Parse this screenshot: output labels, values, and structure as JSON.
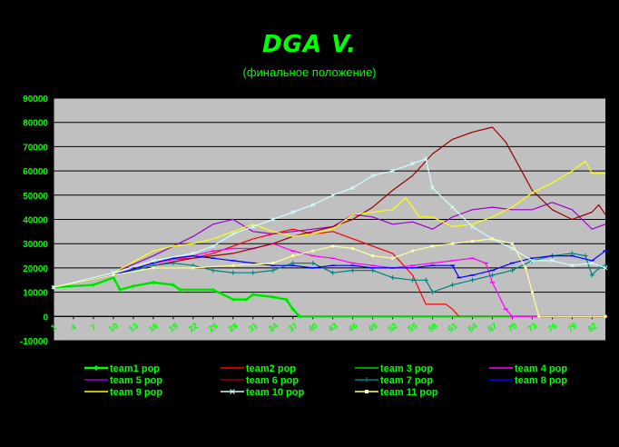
{
  "chart_data": {
    "type": "line",
    "title": "DGA V.",
    "subtitle": "(финальное положение)",
    "xlabel": "",
    "ylabel": "",
    "ylim": [
      -10000,
      90000
    ],
    "y_ticks": [
      "90000",
      "80000",
      "70000",
      "60000",
      "50000",
      "40000",
      "30000",
      "20000",
      "10000",
      "0",
      "-10000"
    ],
    "x_tick_labels": [
      "1",
      "4",
      "7",
      "10",
      "13",
      "16",
      "19",
      "22",
      "25",
      "28",
      "31",
      "34",
      "37",
      "40",
      "43",
      "46",
      "49",
      "52",
      "55",
      "58",
      "61",
      "64",
      "67",
      "70",
      "73",
      "76",
      "79",
      "82"
    ],
    "x_range": [
      1,
      84
    ],
    "grid": "horizontal",
    "legend": "bottom",
    "series": [
      {
        "name": "team1 pop",
        "color": "#00ff00",
        "marker": "diamond",
        "points": [
          [
            1,
            12000
          ],
          [
            7,
            13000
          ],
          [
            10,
            16000
          ],
          [
            11,
            11000
          ],
          [
            13,
            12500
          ],
          [
            16,
            14000
          ],
          [
            19,
            13000
          ],
          [
            20,
            11000
          ],
          [
            25,
            11000
          ],
          [
            28,
            7000
          ],
          [
            30,
            7000
          ],
          [
            31,
            9000
          ],
          [
            34,
            8000
          ],
          [
            36,
            7000
          ],
          [
            37,
            3000
          ],
          [
            38,
            0
          ],
          [
            84,
            0
          ]
        ]
      },
      {
        "name": "team2 pop",
        "color": "#ff0000",
        "marker": "none",
        "points": [
          [
            1,
            12000
          ],
          [
            10,
            17000
          ],
          [
            16,
            22000
          ],
          [
            19,
            23500
          ],
          [
            22,
            24000
          ],
          [
            25,
            26000
          ],
          [
            28,
            29000
          ],
          [
            31,
            32000
          ],
          [
            34,
            34000
          ],
          [
            37,
            36000
          ],
          [
            40,
            34000
          ],
          [
            43,
            35000
          ],
          [
            47,
            31000
          ],
          [
            52,
            26000
          ],
          [
            55,
            17000
          ],
          [
            57,
            5000
          ],
          [
            60,
            5000
          ],
          [
            61,
            3000
          ],
          [
            62,
            0
          ],
          [
            84,
            0
          ]
        ]
      },
      {
        "name": "team 3 pop",
        "color": "#00cc00",
        "marker": "none",
        "points": [
          [
            1,
            12000
          ],
          [
            7,
            13000
          ],
          [
            10,
            16000
          ],
          [
            11,
            11000
          ],
          [
            13,
            12500
          ],
          [
            16,
            14000
          ],
          [
            19,
            13000
          ],
          [
            20,
            11000
          ],
          [
            25,
            11000
          ],
          [
            28,
            7000
          ],
          [
            30,
            7000
          ],
          [
            31,
            9000
          ],
          [
            34,
            8000
          ],
          [
            36,
            7000
          ],
          [
            37,
            3000
          ],
          [
            38,
            0
          ],
          [
            84,
            0
          ]
        ]
      },
      {
        "name": "team 4 pop",
        "color": "#ff00ff",
        "marker": "dash",
        "points": [
          [
            1,
            12000
          ],
          [
            10,
            17000
          ],
          [
            16,
            22000
          ],
          [
            22,
            25000
          ],
          [
            25,
            27000
          ],
          [
            28,
            28000
          ],
          [
            31,
            28000
          ],
          [
            34,
            30000
          ],
          [
            37,
            27000
          ],
          [
            40,
            25000
          ],
          [
            43,
            24000
          ],
          [
            46,
            22000
          ],
          [
            49,
            21000
          ],
          [
            52,
            20000
          ],
          [
            55,
            21000
          ],
          [
            58,
            22000
          ],
          [
            61,
            23000
          ],
          [
            64,
            24000
          ],
          [
            66,
            22000
          ],
          [
            67,
            14000
          ],
          [
            69,
            3000
          ],
          [
            70,
            0
          ],
          [
            84,
            0
          ]
        ]
      },
      {
        "name": "team 5 pop",
        "color": "#9900cc",
        "marker": "none",
        "points": [
          [
            1,
            12000
          ],
          [
            10,
            18000
          ],
          [
            16,
            25000
          ],
          [
            19,
            29000
          ],
          [
            22,
            33000
          ],
          [
            25,
            38000
          ],
          [
            28,
            40000
          ],
          [
            31,
            35000
          ],
          [
            34,
            34000
          ],
          [
            37,
            35000
          ],
          [
            40,
            36000
          ],
          [
            43,
            37000
          ],
          [
            46,
            42000
          ],
          [
            49,
            41000
          ],
          [
            52,
            38000
          ],
          [
            55,
            39000
          ],
          [
            58,
            36000
          ],
          [
            61,
            41000
          ],
          [
            64,
            44000
          ],
          [
            67,
            45000
          ],
          [
            70,
            44000
          ],
          [
            73,
            44000
          ],
          [
            76,
            47000
          ],
          [
            79,
            44000
          ],
          [
            82,
            36000
          ],
          [
            84,
            38000
          ]
        ]
      },
      {
        "name": "team 6 pop",
        "color": "#990000",
        "marker": "none",
        "points": [
          [
            1,
            12000
          ],
          [
            10,
            17000
          ],
          [
            16,
            21000
          ],
          [
            22,
            24000
          ],
          [
            28,
            26000
          ],
          [
            34,
            30000
          ],
          [
            37,
            33000
          ],
          [
            40,
            35000
          ],
          [
            43,
            37000
          ],
          [
            46,
            40000
          ],
          [
            49,
            45000
          ],
          [
            52,
            52000
          ],
          [
            55,
            58000
          ],
          [
            58,
            67000
          ],
          [
            61,
            73000
          ],
          [
            64,
            76000
          ],
          [
            67,
            78000
          ],
          [
            69,
            72000
          ],
          [
            71,
            62000
          ],
          [
            73,
            52000
          ],
          [
            76,
            44000
          ],
          [
            79,
            40000
          ],
          [
            82,
            43000
          ],
          [
            83,
            46000
          ],
          [
            84,
            42000
          ]
        ]
      },
      {
        "name": "team 7 pop",
        "color": "#008080",
        "marker": "plus",
        "points": [
          [
            1,
            12000
          ],
          [
            10,
            17000
          ],
          [
            16,
            21000
          ],
          [
            19,
            22000
          ],
          [
            22,
            21000
          ],
          [
            25,
            19000
          ],
          [
            28,
            18000
          ],
          [
            31,
            18000
          ],
          [
            34,
            19000
          ],
          [
            37,
            22000
          ],
          [
            40,
            22000
          ],
          [
            43,
            18000
          ],
          [
            46,
            19000
          ],
          [
            49,
            19000
          ],
          [
            52,
            16000
          ],
          [
            55,
            15000
          ],
          [
            57,
            15000
          ],
          [
            58,
            10000
          ],
          [
            61,
            13000
          ],
          [
            64,
            15000
          ],
          [
            67,
            17000
          ],
          [
            70,
            19000
          ],
          [
            73,
            23000
          ],
          [
            76,
            25000
          ],
          [
            79,
            26000
          ],
          [
            81,
            25000
          ],
          [
            82,
            17000
          ],
          [
            83,
            20000
          ],
          [
            84,
            21000
          ]
        ]
      },
      {
        "name": "team 8 pop",
        "color": "#0000ff",
        "marker": "dash",
        "points": [
          [
            1,
            12000
          ],
          [
            10,
            17000
          ],
          [
            16,
            22000
          ],
          [
            19,
            24000
          ],
          [
            22,
            25000
          ],
          [
            25,
            24000
          ],
          [
            28,
            23000
          ],
          [
            31,
            22000
          ],
          [
            34,
            21000
          ],
          [
            37,
            21000
          ],
          [
            40,
            20000
          ],
          [
            43,
            21000
          ],
          [
            46,
            21000
          ],
          [
            49,
            20000
          ],
          [
            52,
            20000
          ],
          [
            55,
            20000
          ],
          [
            58,
            21000
          ],
          [
            61,
            21000
          ],
          [
            62,
            16000
          ],
          [
            64,
            17000
          ],
          [
            67,
            19000
          ],
          [
            70,
            22000
          ],
          [
            73,
            24000
          ],
          [
            76,
            25000
          ],
          [
            79,
            25000
          ],
          [
            82,
            23000
          ],
          [
            84,
            27000
          ]
        ]
      },
      {
        "name": "team 9 pop",
        "color": "#ffff00",
        "marker": "none",
        "points": [
          [
            1,
            12000
          ],
          [
            10,
            18000
          ],
          [
            16,
            27000
          ],
          [
            19,
            29000
          ],
          [
            22,
            30000
          ],
          [
            25,
            32000
          ],
          [
            28,
            35000
          ],
          [
            31,
            38000
          ],
          [
            34,
            35000
          ],
          [
            37,
            33000
          ],
          [
            40,
            34000
          ],
          [
            43,
            36000
          ],
          [
            46,
            42000
          ],
          [
            49,
            43000
          ],
          [
            52,
            44000
          ],
          [
            54,
            49000
          ],
          [
            56,
            41000
          ],
          [
            58,
            41000
          ],
          [
            61,
            37000
          ],
          [
            64,
            38000
          ],
          [
            67,
            41000
          ],
          [
            70,
            45000
          ],
          [
            73,
            51000
          ],
          [
            76,
            55000
          ],
          [
            79,
            60000
          ],
          [
            81,
            64000
          ],
          [
            82,
            59000
          ],
          [
            84,
            59000
          ]
        ]
      },
      {
        "name": "team 10 pop",
        "color": "#ccffff",
        "marker": "cross",
        "points": [
          [
            1,
            12000
          ],
          [
            10,
            18000
          ],
          [
            16,
            23000
          ],
          [
            22,
            26000
          ],
          [
            25,
            29000
          ],
          [
            28,
            34000
          ],
          [
            31,
            37000
          ],
          [
            34,
            40000
          ],
          [
            37,
            43000
          ],
          [
            40,
            46000
          ],
          [
            43,
            50000
          ],
          [
            46,
            53000
          ],
          [
            49,
            58000
          ],
          [
            52,
            60000
          ],
          [
            55,
            63000
          ],
          [
            57,
            65000
          ],
          [
            58,
            53000
          ],
          [
            61,
            45000
          ],
          [
            64,
            37000
          ],
          [
            67,
            32000
          ],
          [
            70,
            28000
          ],
          [
            73,
            23000
          ],
          [
            76,
            23000
          ],
          [
            79,
            21000
          ],
          [
            82,
            22000
          ],
          [
            84,
            20000
          ]
        ]
      },
      {
        "name": "team 11 pop",
        "color": "#ffff99",
        "marker": "square",
        "points": [
          [
            1,
            12000
          ],
          [
            10,
            17000
          ],
          [
            16,
            20000
          ],
          [
            22,
            20000
          ],
          [
            28,
            21000
          ],
          [
            34,
            22000
          ],
          [
            37,
            25000
          ],
          [
            40,
            27000
          ],
          [
            43,
            29000
          ],
          [
            46,
            28000
          ],
          [
            49,
            25000
          ],
          [
            52,
            24000
          ],
          [
            55,
            27000
          ],
          [
            58,
            29000
          ],
          [
            61,
            30000
          ],
          [
            64,
            31000
          ],
          [
            67,
            32000
          ],
          [
            70,
            30000
          ],
          [
            72,
            20000
          ],
          [
            73,
            10000
          ],
          [
            74,
            0
          ],
          [
            84,
            0
          ]
        ]
      }
    ]
  }
}
